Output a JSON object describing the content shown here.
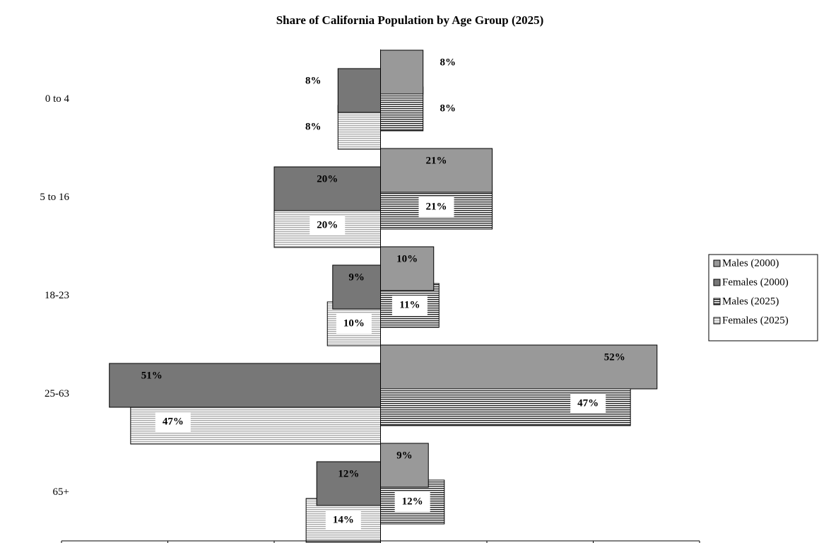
{
  "chart_data": {
    "type": "bar",
    "orientation": "horizontal",
    "title": "Share of California Population by Age Group (2025)",
    "categories": [
      "0 to 4",
      "5 to 16",
      "18-23",
      "25-63",
      "65+"
    ],
    "series": [
      {
        "name": "Males (2000)",
        "color": "#999999",
        "hatch": false,
        "values": [
          8,
          21,
          10,
          52,
          9
        ],
        "value_labels": [
          "8%",
          "21%",
          "10%",
          "52%",
          "9%"
        ]
      },
      {
        "name": "Females (2000)",
        "color": "#777777",
        "hatch": false,
        "values": [
          -8,
          -20,
          -9,
          -51,
          -12
        ],
        "value_labels": [
          "8%",
          "20%",
          "9%",
          "51%",
          "12%"
        ]
      },
      {
        "name": "Males (2025)",
        "color": "#222222",
        "hatch": true,
        "values": [
          8,
          21,
          11,
          47,
          12
        ],
        "value_labels": [
          "8%",
          "21%",
          "11%",
          "47%",
          "12%"
        ]
      },
      {
        "name": "Females (2025)",
        "color": "#aaaaaa",
        "hatch": true,
        "values": [
          -8,
          -20,
          -10,
          -47,
          -14
        ],
        "value_labels": [
          "8%",
          "20%",
          "10%",
          "47%",
          "14%"
        ]
      }
    ],
    "xlim": [
      -60,
      60
    ],
    "xticks": [
      -60,
      -40,
      -20,
      0,
      20,
      40,
      60
    ],
    "legend": "right"
  }
}
